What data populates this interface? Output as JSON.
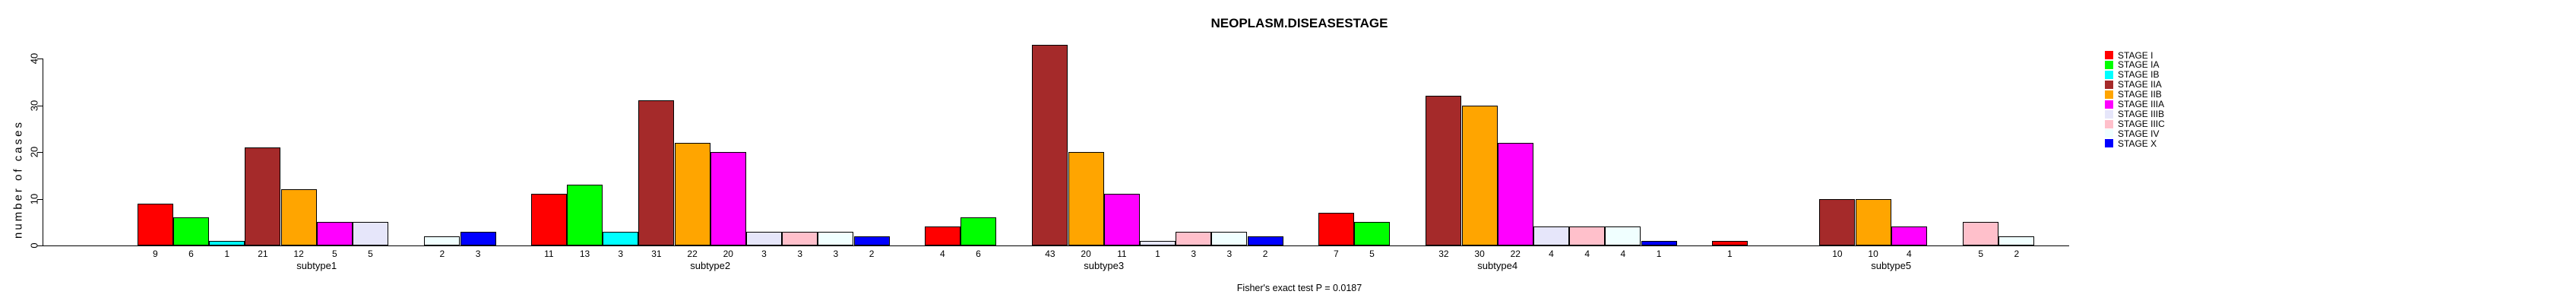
{
  "chart_data": {
    "type": "bar",
    "title": "NEOPLASM.DISEASESTAGE",
    "ylabel": "number of cases",
    "xlabel": "",
    "footer": "Fisher's exact test P = 0.0187",
    "categories": [
      "subtype1",
      "subtype2",
      "subtype3",
      "subtype4",
      "subtype5"
    ],
    "series": [
      {
        "name": "STAGE I",
        "color": "#FF0000",
        "values": [
          9,
          11,
          4,
          7,
          1
        ]
      },
      {
        "name": "STAGE IA",
        "color": "#00FF00",
        "values": [
          6,
          13,
          6,
          5,
          0
        ]
      },
      {
        "name": "STAGE IB",
        "color": "#00FFFF",
        "values": [
          1,
          3,
          0,
          0,
          0
        ]
      },
      {
        "name": "STAGE IIA",
        "color": "#A52A2A",
        "values": [
          21,
          31,
          43,
          32,
          10
        ]
      },
      {
        "name": "STAGE IIB",
        "color": "#FFA500",
        "values": [
          12,
          22,
          20,
          30,
          10
        ]
      },
      {
        "name": "STAGE IIIA",
        "color": "#FF00FF",
        "values": [
          5,
          20,
          11,
          22,
          4
        ]
      },
      {
        "name": "STAGE IIIB",
        "color": "#E6E6FA",
        "values": [
          5,
          3,
          1,
          4,
          0
        ]
      },
      {
        "name": "STAGE IIIC",
        "color": "#FFC0CB",
        "values": [
          0,
          3,
          3,
          4,
          5
        ]
      },
      {
        "name": "STAGE IV",
        "color": "#F0FFFF",
        "values": [
          2,
          3,
          3,
          4,
          2
        ]
      },
      {
        "name": "STAGE X",
        "color": "#0000FF",
        "values": [
          3,
          2,
          2,
          1,
          0
        ]
      }
    ],
    "yticks": [
      0,
      10,
      20,
      30,
      40
    ],
    "ylim": [
      0,
      43
    ],
    "bar_value_labels": true,
    "grid": false,
    "legend_position": "right",
    "axis_color": "#000000",
    "background_color": "#FFFFFF"
  }
}
